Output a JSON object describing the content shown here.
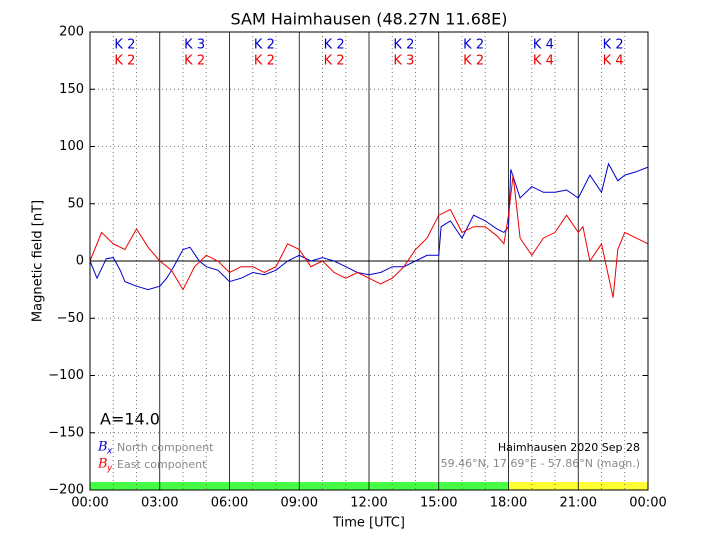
{
  "chart_data": {
    "type": "line",
    "title": "SAM Haimhausen (48.27N 11.68E)",
    "xlabel": "Time [UTC]",
    "ylabel": "Magnetic field [nT]",
    "xlim": [
      0,
      24
    ],
    "xticks": [
      {
        "value": 0,
        "label": "00:00"
      },
      {
        "value": 3,
        "label": "03:00"
      },
      {
        "value": 6,
        "label": "06:00"
      },
      {
        "value": 9,
        "label": "09:00"
      },
      {
        "value": 12,
        "label": "12:00"
      },
      {
        "value": 15,
        "label": "15:00"
      },
      {
        "value": 18,
        "label": "18:00"
      },
      {
        "value": 21,
        "label": "21:00"
      },
      {
        "value": 24,
        "label": "00:00"
      }
    ],
    "xminor": [
      1,
      2,
      4,
      5,
      7,
      8,
      10,
      11,
      13,
      14,
      16,
      17,
      19,
      20,
      22,
      23
    ],
    "ylim": [
      -200,
      200
    ],
    "yticks": [
      {
        "value": -200,
        "label": "−200"
      },
      {
        "value": -150,
        "label": "−150"
      },
      {
        "value": -100,
        "label": "−100"
      },
      {
        "value": -50,
        "label": "−50"
      },
      0,
      50,
      100,
      150,
      200
    ],
    "grid": true,
    "series": [
      {
        "name": "North component",
        "symbol": "B",
        "subscript": "x",
        "color": "#0000cc",
        "x": [
          0,
          0.3,
          0.7,
          1.0,
          1.3,
          1.5,
          2.0,
          2.5,
          3.0,
          3.3,
          3.6,
          4.0,
          4.3,
          4.7,
          5.0,
          5.5,
          6.0,
          6.5,
          7.0,
          7.5,
          8.0,
          8.5,
          9.0,
          9.5,
          10.0,
          10.5,
          11.0,
          11.5,
          12.0,
          12.5,
          13.0,
          13.5,
          14.0,
          14.5,
          15.0,
          15.1,
          15.5,
          16.0,
          16.5,
          17.0,
          17.5,
          17.8,
          18.0,
          18.1,
          18.5,
          19.0,
          19.5,
          20.0,
          20.5,
          21.0,
          21.5,
          22.0,
          22.3,
          22.7,
          23.0,
          23.5,
          24.0
        ],
        "values": [
          0,
          -15,
          2,
          3,
          -8,
          -18,
          -22,
          -25,
          -22,
          -15,
          -5,
          10,
          12,
          0,
          -5,
          -8,
          -18,
          -15,
          -10,
          -12,
          -8,
          0,
          5,
          0,
          3,
          0,
          -5,
          -10,
          -12,
          -10,
          -5,
          -5,
          0,
          5,
          5,
          30,
          35,
          20,
          40,
          35,
          28,
          25,
          30,
          80,
          55,
          65,
          60,
          60,
          62,
          55,
          75,
          60,
          85,
          70,
          75,
          78,
          82
        ]
      },
      {
        "name": "East component",
        "symbol": "B",
        "subscript": "y",
        "color": "#ee0000",
        "x": [
          0,
          0.5,
          1.0,
          1.5,
          2.0,
          2.5,
          3.0,
          3.5,
          4.0,
          4.5,
          5.0,
          5.5,
          6.0,
          6.5,
          7.0,
          7.5,
          8.0,
          8.5,
          9.0,
          9.5,
          10.0,
          10.5,
          11.0,
          11.5,
          12.0,
          12.5,
          13.0,
          13.5,
          14.0,
          14.5,
          15.0,
          15.5,
          16.0,
          16.5,
          17.0,
          17.5,
          17.8,
          18.0,
          18.2,
          18.5,
          19.0,
          19.5,
          20.0,
          20.5,
          21.0,
          21.2,
          21.5,
          22.0,
          22.5,
          22.7,
          23.0,
          23.5,
          24.0
        ],
        "values": [
          0,
          25,
          15,
          10,
          28,
          12,
          0,
          -8,
          -25,
          -5,
          5,
          0,
          -10,
          -5,
          -5,
          -10,
          -5,
          15,
          10,
          -5,
          0,
          -10,
          -15,
          -10,
          -15,
          -20,
          -15,
          -5,
          10,
          20,
          40,
          45,
          25,
          30,
          30,
          22,
          15,
          40,
          75,
          20,
          5,
          20,
          25,
          40,
          25,
          30,
          0,
          15,
          -32,
          10,
          25,
          20,
          15
        ]
      }
    ],
    "k_index": {
      "north": [
        "K 2",
        "K 3",
        "K 2",
        "K 2",
        "K 2",
        "K 2",
        "K 4",
        "K 2"
      ],
      "east": [
        "K 2",
        "K 2",
        "K 2",
        "K 2",
        "K 3",
        "K 2",
        "K 4",
        "K 4"
      ]
    },
    "activity_bands": [
      {
        "from": 0,
        "to": 18,
        "color": "#44ff44"
      },
      {
        "from": 18,
        "to": 24,
        "color": "#ffff33"
      }
    ],
    "annotations": {
      "a_index": "A=14.0",
      "station": "Haimhausen 2020 Sep 28",
      "coords": "59.46°N, 17.69°E - 57.86°N (magn.)"
    }
  }
}
